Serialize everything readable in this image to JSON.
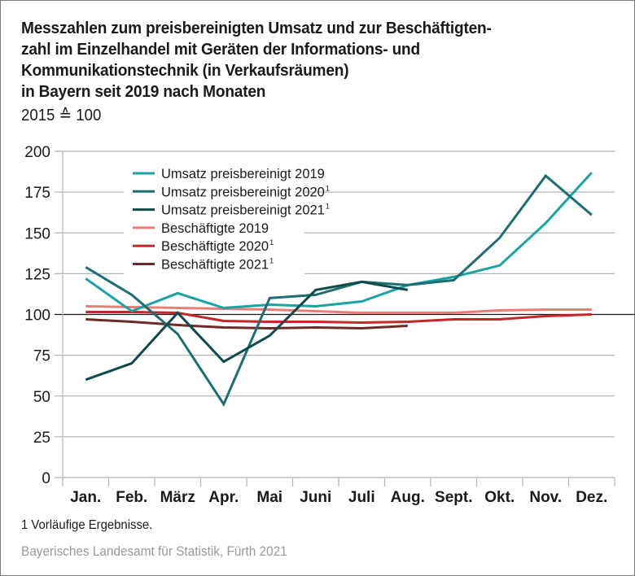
{
  "chart_data": {
    "type": "line",
    "title": [
      "Messzahlen zum preisbereinigten Umsatz und zur Beschäftigten-",
      "zahl im Einzelhandel mit Geräten der Informations- und",
      "Kommunikationstechnik (in Verkaufsräumen)",
      "in Bayern seit 2019 nach Monaten"
    ],
    "subtitle": "2015 ≙ 100",
    "xlabel": "",
    "ylabel": "",
    "categories": [
      "Jan.",
      "Feb.",
      "März",
      "Apr.",
      "Mai",
      "Juni",
      "Juli",
      "Aug.",
      "Sept.",
      "Okt.",
      "Nov.",
      "Dez."
    ],
    "ylim": [
      0,
      200
    ],
    "yticks": [
      0,
      25,
      50,
      75,
      100,
      125,
      150,
      175,
      200
    ],
    "reference_line": 100,
    "grid": true,
    "legend_position": "top-left",
    "series": [
      {
        "name": "Umsatz preisbereinigt 2019",
        "footnote": "",
        "color": "#1aa3a3",
        "values": [
          122,
          102,
          113,
          104,
          106,
          105,
          108,
          118,
          123,
          130,
          156,
          187
        ]
      },
      {
        "name": "Umsatz preisbereinigt 2020",
        "footnote": "1",
        "color": "#1d6e70",
        "values": [
          129,
          112,
          88,
          45,
          110,
          112,
          120,
          118,
          121,
          147,
          185,
          161
        ]
      },
      {
        "name": "Umsatz preisbereinigt 2021",
        "footnote": "1",
        "color": "#0e4b4b",
        "values": [
          60,
          70,
          101,
          71,
          87,
          115,
          120,
          115
        ]
      },
      {
        "name": "Beschäftigte 2019",
        "footnote": "",
        "color": "#ef7c74",
        "values": [
          105,
          104.5,
          104,
          103.5,
          103,
          102,
          101,
          101,
          101,
          102.5,
          103,
          103
        ]
      },
      {
        "name": "Beschäftigte 2020",
        "footnote": "1",
        "color": "#c4262a",
        "values": [
          101.5,
          101.5,
          101,
          96,
          95.5,
          95.5,
          95,
          95.5,
          97,
          97,
          99,
          100
        ]
      },
      {
        "name": "Beschäftigte 2021",
        "footnote": "1",
        "color": "#6e2a2a",
        "values": [
          97,
          95.5,
          93.5,
          92,
          91.5,
          92,
          91.5,
          93
        ]
      }
    ]
  },
  "footnote": "1  Vorläufige Ergebnisse.",
  "source": "Bayerisches Landesamt für Statistik, Fürth 2021"
}
